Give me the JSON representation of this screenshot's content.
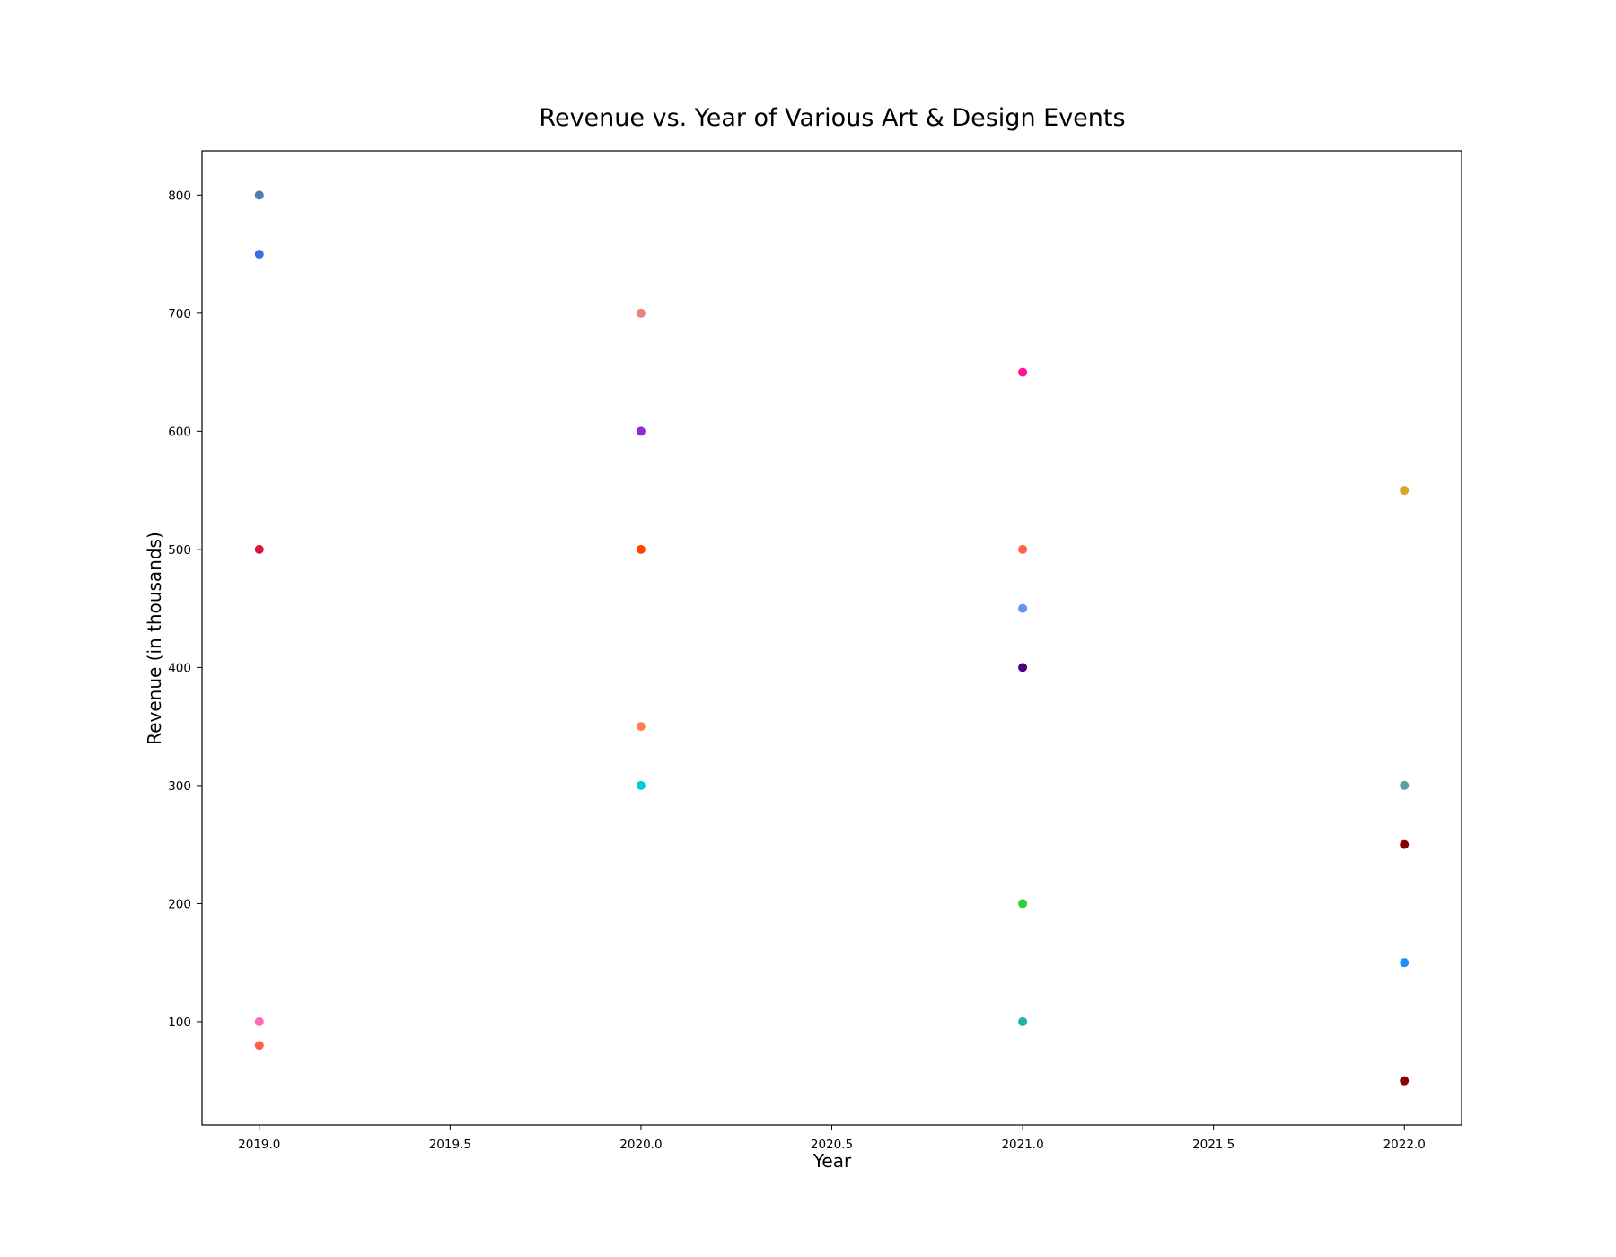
{
  "chart_data": {
    "type": "scatter",
    "title": "Revenue vs. Year of Various Art & Design Events",
    "xlabel": "Year",
    "ylabel": "Revenue (in thousands)",
    "xlim": [
      2018.85,
      2022.15
    ],
    "ylim": [
      12.5,
      837.5
    ],
    "xticks": [
      "2019.0",
      "2019.5",
      "2020.0",
      "2020.5",
      "2021.0",
      "2021.5",
      "2022.0"
    ],
    "xtick_values": [
      2019.0,
      2019.5,
      2020.0,
      2020.5,
      2021.0,
      2021.5,
      2022.0
    ],
    "yticks": [
      "100",
      "200",
      "300",
      "400",
      "500",
      "600",
      "700",
      "800"
    ],
    "ytick_values": [
      100,
      200,
      300,
      400,
      500,
      600,
      700,
      800
    ],
    "grid": false,
    "legend": "none",
    "points": [
      {
        "x": 2019,
        "y": 800,
        "color": "#4682b4"
      },
      {
        "x": 2019,
        "y": 750,
        "color": "#4169e1"
      },
      {
        "x": 2019,
        "y": 500,
        "color": "#dc143c"
      },
      {
        "x": 2019,
        "y": 100,
        "color": "#ff69b4"
      },
      {
        "x": 2019,
        "y": 80,
        "color": "#ff6347"
      },
      {
        "x": 2020,
        "y": 700,
        "color": "#f08080"
      },
      {
        "x": 2020,
        "y": 600,
        "color": "#8a2be2"
      },
      {
        "x": 2020,
        "y": 500,
        "color": "#ff4500"
      },
      {
        "x": 2020,
        "y": 350,
        "color": "#ff7f50"
      },
      {
        "x": 2020,
        "y": 300,
        "color": "#00ced1"
      },
      {
        "x": 2021,
        "y": 650,
        "color": "#ff1493"
      },
      {
        "x": 2021,
        "y": 500,
        "color": "#ff6347"
      },
      {
        "x": 2021,
        "y": 450,
        "color": "#6495ed"
      },
      {
        "x": 2021,
        "y": 400,
        "color": "#4b0082"
      },
      {
        "x": 2021,
        "y": 200,
        "color": "#32cd32"
      },
      {
        "x": 2021,
        "y": 100,
        "color": "#20b2aa"
      },
      {
        "x": 2022,
        "y": 550,
        "color": "#daa520"
      },
      {
        "x": 2022,
        "y": 300,
        "color": "#5f9ea0"
      },
      {
        "x": 2022,
        "y": 250,
        "color": "#8b0000"
      },
      {
        "x": 2022,
        "y": 150,
        "color": "#1e90ff"
      },
      {
        "x": 2022,
        "y": 50,
        "color": "#8b0000"
      }
    ]
  }
}
